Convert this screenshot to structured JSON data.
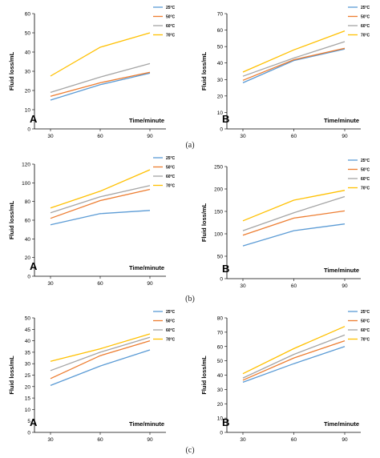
{
  "captions": [
    "(a)",
    "(b)",
    "(c)"
  ],
  "series_colors": [
    "#5B9BD5",
    "#ED7D31",
    "#A5A5A5",
    "#FFC000"
  ],
  "chart_data": [
    {
      "type": "line",
      "panel": "A",
      "xlabel": "Time/minute",
      "ylabel": "Fluid loss/mL",
      "x": [
        30,
        60,
        90
      ],
      "ylim": [
        0,
        60
      ],
      "yticks": [
        0,
        10,
        20,
        30,
        40,
        50,
        60
      ],
      "legend_position": "top-right",
      "grid": false,
      "series": [
        {
          "name": "25°C",
          "values": [
            15,
            23,
            29
          ]
        },
        {
          "name": "50°C",
          "values": [
            17,
            24,
            29.5
          ]
        },
        {
          "name": "60°C",
          "values": [
            19,
            27,
            34
          ]
        },
        {
          "name": "70°C",
          "values": [
            27.5,
            42.5,
            50
          ]
        }
      ]
    },
    {
      "type": "line",
      "panel": "B",
      "xlabel": "Time/minute",
      "ylabel": "Fluid loss/mL",
      "x": [
        30,
        60,
        90
      ],
      "ylim": [
        0,
        70
      ],
      "yticks": [
        0,
        10,
        20,
        30,
        40,
        50,
        60,
        70
      ],
      "legend_position": "top-right",
      "grid": false,
      "series": [
        {
          "name": "25°C",
          "values": [
            28,
            41.5,
            48.5
          ]
        },
        {
          "name": "50°C",
          "values": [
            29.5,
            42,
            49
          ]
        },
        {
          "name": "60°C",
          "values": [
            32,
            43,
            53
          ]
        },
        {
          "name": "70°C",
          "values": [
            34.5,
            48,
            59.5
          ]
        }
      ]
    },
    {
      "type": "line",
      "panel": "A",
      "xlabel": "Time/minute",
      "ylabel": "Fluid loss/mL",
      "x": [
        30,
        60,
        90
      ],
      "ylim": [
        0,
        120
      ],
      "yticks": [
        0,
        20,
        40,
        60,
        80,
        100,
        120
      ],
      "legend_position": "top-right",
      "grid": false,
      "series": [
        {
          "name": "25°C",
          "values": [
            55,
            67,
            70.5
          ]
        },
        {
          "name": "50°C",
          "values": [
            62,
            81,
            93
          ]
        },
        {
          "name": "60°C",
          "values": [
            68,
            85,
            97
          ]
        },
        {
          "name": "70°C",
          "values": [
            73,
            91,
            114
          ]
        }
      ]
    },
    {
      "type": "line",
      "panel": "B",
      "xlabel": "Time/minute",
      "ylabel": "Fluid loss/mL",
      "x": [
        30,
        60,
        90
      ],
      "ylim": [
        0,
        250
      ],
      "yticks": [
        0,
        50,
        100,
        150,
        200,
        250
      ],
      "legend_position": "top-right",
      "grid": false,
      "series": [
        {
          "name": "25°C",
          "values": [
            73,
            107,
            122
          ]
        },
        {
          "name": "50°C",
          "values": [
            97,
            135,
            151
          ]
        },
        {
          "name": "60°C",
          "values": [
            107,
            147,
            183
          ]
        },
        {
          "name": "70°C",
          "values": [
            129,
            175,
            197
          ]
        }
      ]
    },
    {
      "type": "line",
      "panel": "A",
      "xlabel": "Time/minute",
      "ylabel": "Fluid loss/mL",
      "x": [
        30,
        60,
        90
      ],
      "ylim": [
        0,
        50
      ],
      "yticks": [
        0,
        5,
        10,
        15,
        20,
        25,
        30,
        35,
        40,
        45,
        50
      ],
      "legend_position": "top-right",
      "grid": false,
      "series": [
        {
          "name": "25°C",
          "values": [
            20.5,
            29,
            36
          ]
        },
        {
          "name": "50°C",
          "values": [
            23.5,
            33.5,
            40
          ]
        },
        {
          "name": "60°C",
          "values": [
            27,
            35,
            41.5
          ]
        },
        {
          "name": "70°C",
          "values": [
            31,
            36.5,
            43
          ]
        }
      ]
    },
    {
      "type": "line",
      "panel": "B",
      "xlabel": "Time/minute",
      "ylabel": "Fluid loss/mL",
      "x": [
        30,
        60,
        90
      ],
      "ylim": [
        0,
        80
      ],
      "yticks": [
        0,
        10,
        20,
        30,
        40,
        50,
        60,
        70,
        80
      ],
      "legend_position": "top-right",
      "grid": false,
      "series": [
        {
          "name": "25°C",
          "values": [
            35,
            48,
            60
          ]
        },
        {
          "name": "50°C",
          "values": [
            36.5,
            52,
            64
          ]
        },
        {
          "name": "60°C",
          "values": [
            38,
            54.5,
            68
          ]
        },
        {
          "name": "70°C",
          "values": [
            41,
            58.5,
            74
          ]
        }
      ]
    }
  ]
}
